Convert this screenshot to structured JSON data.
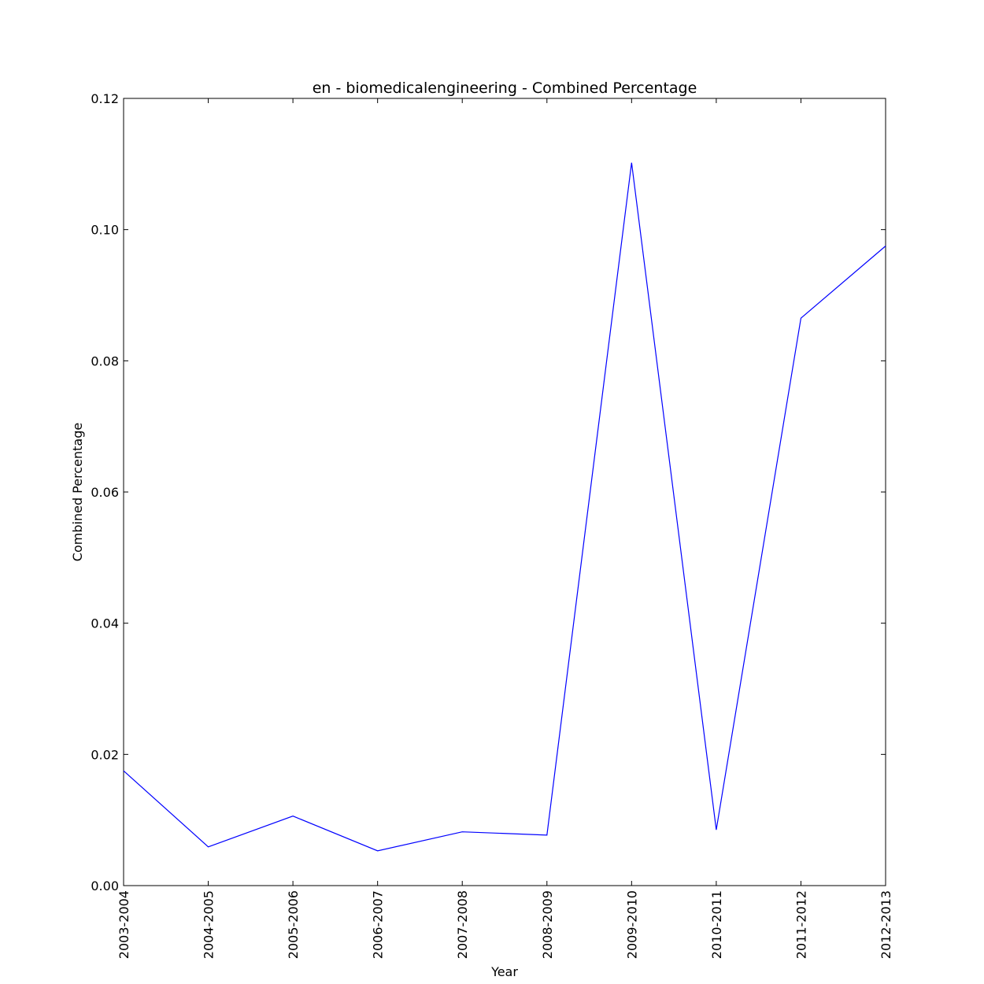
{
  "chart_data": {
    "type": "line",
    "title": "en - biomedicalengineering - Combined Percentage",
    "xlabel": "Year",
    "ylabel": "Combined Percentage",
    "categories": [
      "2003-2004",
      "2004-2005",
      "2005-2006",
      "2006-2007",
      "2007-2008",
      "2008-2009",
      "2009-2010",
      "2010-2011",
      "2011-2012",
      "2012-2013"
    ],
    "series": [
      {
        "values": [
          0.0175,
          0.0059,
          0.0106,
          0.0053,
          0.0082,
          0.0077,
          0.1102,
          0.0085,
          0.0865,
          0.0975
        ],
        "color": "#0000ff"
      }
    ],
    "ylim": [
      0,
      0.12
    ],
    "yticks": [
      "0.00",
      "0.02",
      "0.04",
      "0.06",
      "0.08",
      "0.10",
      "0.12"
    ],
    "grid": false,
    "legend": "none"
  }
}
